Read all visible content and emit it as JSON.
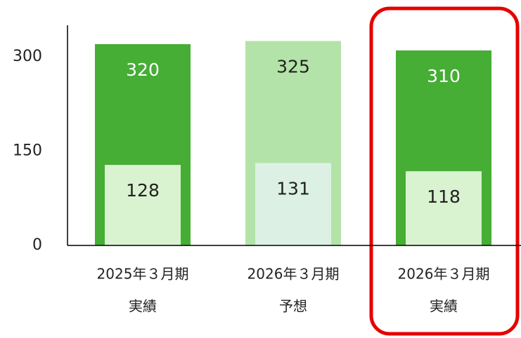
{
  "chart_data": {
    "type": "bar",
    "categories": [
      [
        "2025年３月期",
        "実績"
      ],
      [
        "2026年３月期",
        "予想"
      ],
      [
        "2026年３月期",
        "実績"
      ]
    ],
    "series": [
      {
        "values": [
          320,
          325,
          310
        ],
        "colors": [
          "#46ad35",
          "#b3e3a8",
          "#46ad35"
        ],
        "label_colors": [
          "#ffffff",
          "#222222",
          "#ffffff"
        ]
      },
      {
        "values": [
          128,
          131,
          118
        ],
        "colors": [
          "#d9f2d0",
          "#dcf1e4",
          "#d9f2d0"
        ],
        "label_colors": [
          "#222222",
          "#222222",
          "#222222"
        ]
      }
    ],
    "ylim": [
      0,
      350
    ],
    "yticks": [
      0,
      150,
      300
    ]
  }
}
